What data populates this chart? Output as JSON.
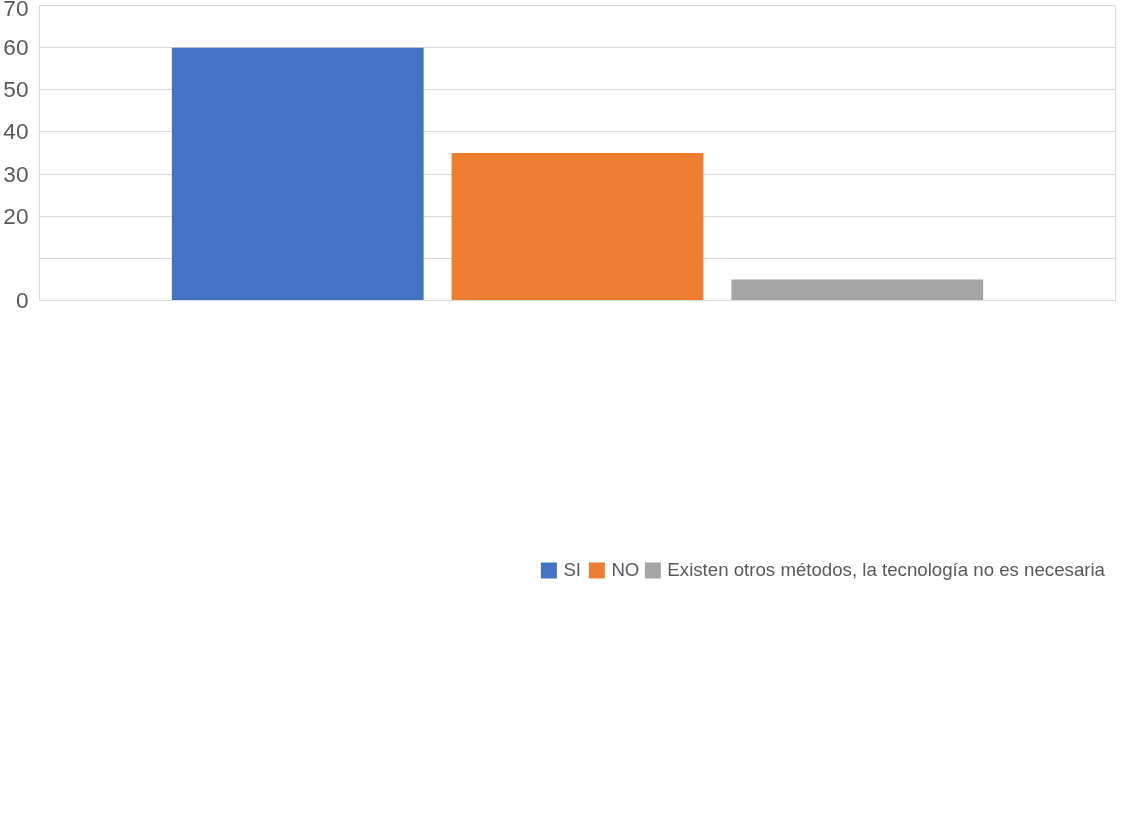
{
  "chart_data": {
    "type": "bar",
    "categories": [
      null
    ],
    "series": [
      {
        "name": "SI",
        "color": "#4472c4",
        "values": [
          60
        ]
      },
      {
        "name": "NO",
        "color": "#ed7d31",
        "values": [
          35
        ]
      },
      {
        "name": "Existen otros métodos, la tecnología no es necesaria",
        "color": "#a5a5a5",
        "values": [
          5
        ]
      }
    ],
    "ylim": [
      0,
      70
    ],
    "yticks": [
      0,
      {
        "value": 10,
        "label": null
      },
      20,
      30,
      40,
      50,
      60,
      70
    ],
    "grid": "y",
    "legend": "bottom"
  }
}
